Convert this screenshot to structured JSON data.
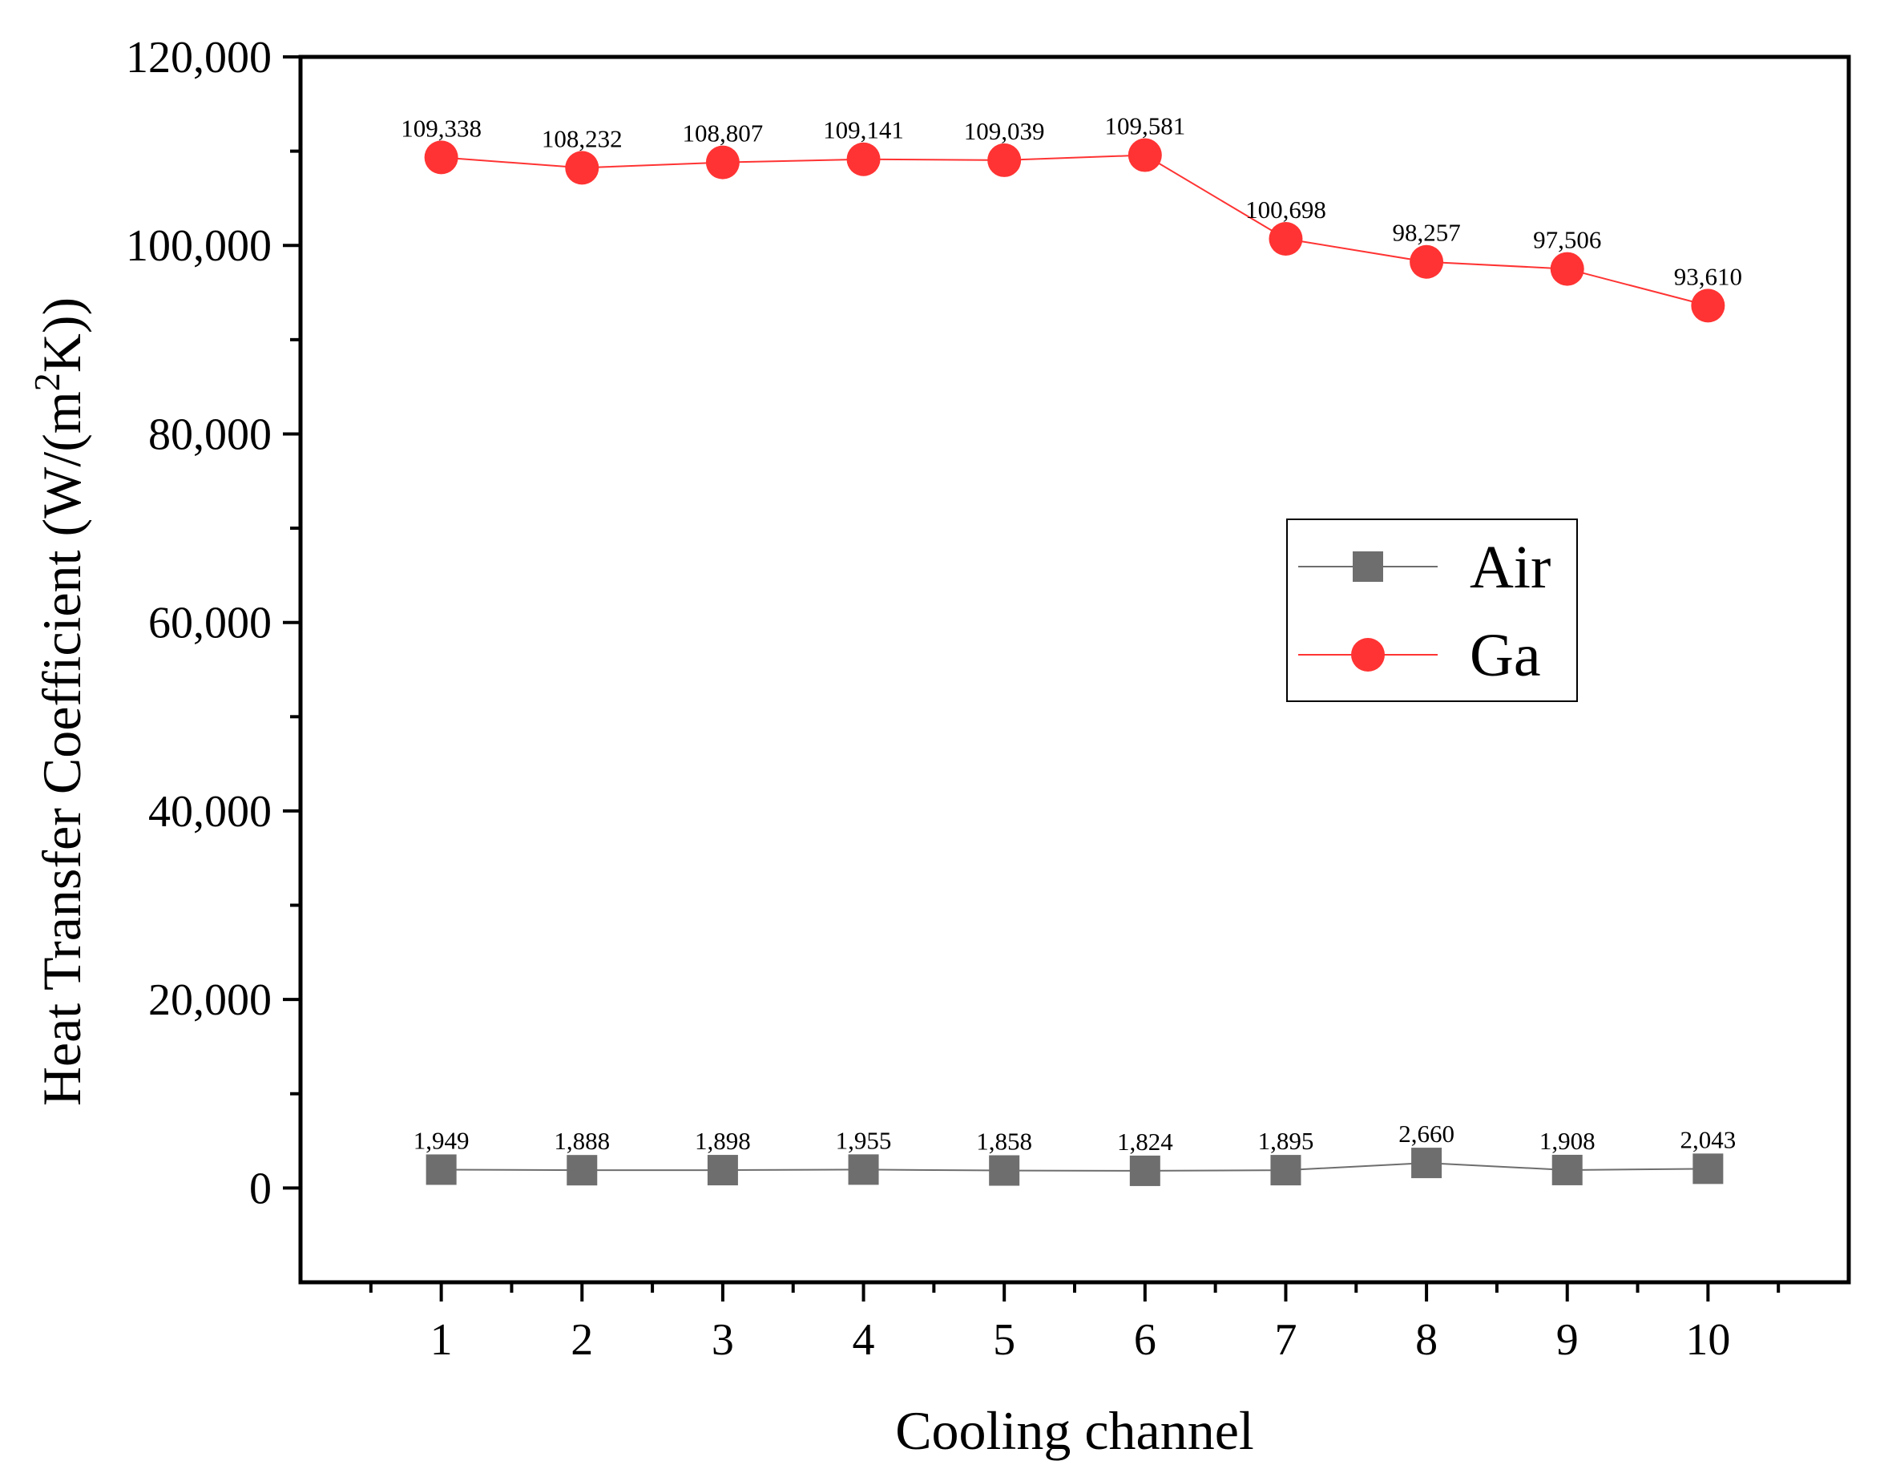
{
  "chart_data": {
    "type": "line",
    "title": "",
    "xlabel": "Cooling channel",
    "ylabel": "Heat Transfer Coefficient (W/(m",
    "ylabel_superscript": "2",
    "ylabel_suffix": "K))",
    "x": [
      1,
      2,
      3,
      4,
      5,
      6,
      7,
      8,
      9,
      10
    ],
    "x_tick_labels": [
      "1",
      "2",
      "3",
      "4",
      "5",
      "6",
      "7",
      "8",
      "9",
      "10"
    ],
    "xlim": [
      0,
      11
    ],
    "ylim": [
      -10000,
      120000
    ],
    "y_ticks": [
      0,
      20000,
      40000,
      60000,
      80000,
      100000,
      120000
    ],
    "y_tick_labels": [
      "0",
      "20,000",
      "40,000",
      "60,000",
      "80,000",
      "100,000",
      "120,000"
    ],
    "grid": false,
    "legend_position": "right",
    "series": [
      {
        "name": "Air",
        "marker": "square",
        "color": "#6e6e6e",
        "values": [
          1949,
          1888,
          1898,
          1955,
          1858,
          1824,
          1895,
          2660,
          1908,
          2043
        ],
        "labels": [
          "1,949",
          "1,888",
          "1,898",
          "1,955",
          "1,858",
          "1,824",
          "1,895",
          "2,660",
          "1,908",
          "2,043"
        ]
      },
      {
        "name": "Ga",
        "marker": "circle",
        "color": "#ff3333",
        "values": [
          109338,
          108232,
          108807,
          109141,
          109039,
          109581,
          100698,
          98257,
          97506,
          93610
        ],
        "labels": [
          "109,338",
          "108,232",
          "108,807",
          "109,141",
          "109,039",
          "109,581",
          "100,698",
          "98,257",
          "97,506",
          "93,610"
        ]
      }
    ]
  }
}
